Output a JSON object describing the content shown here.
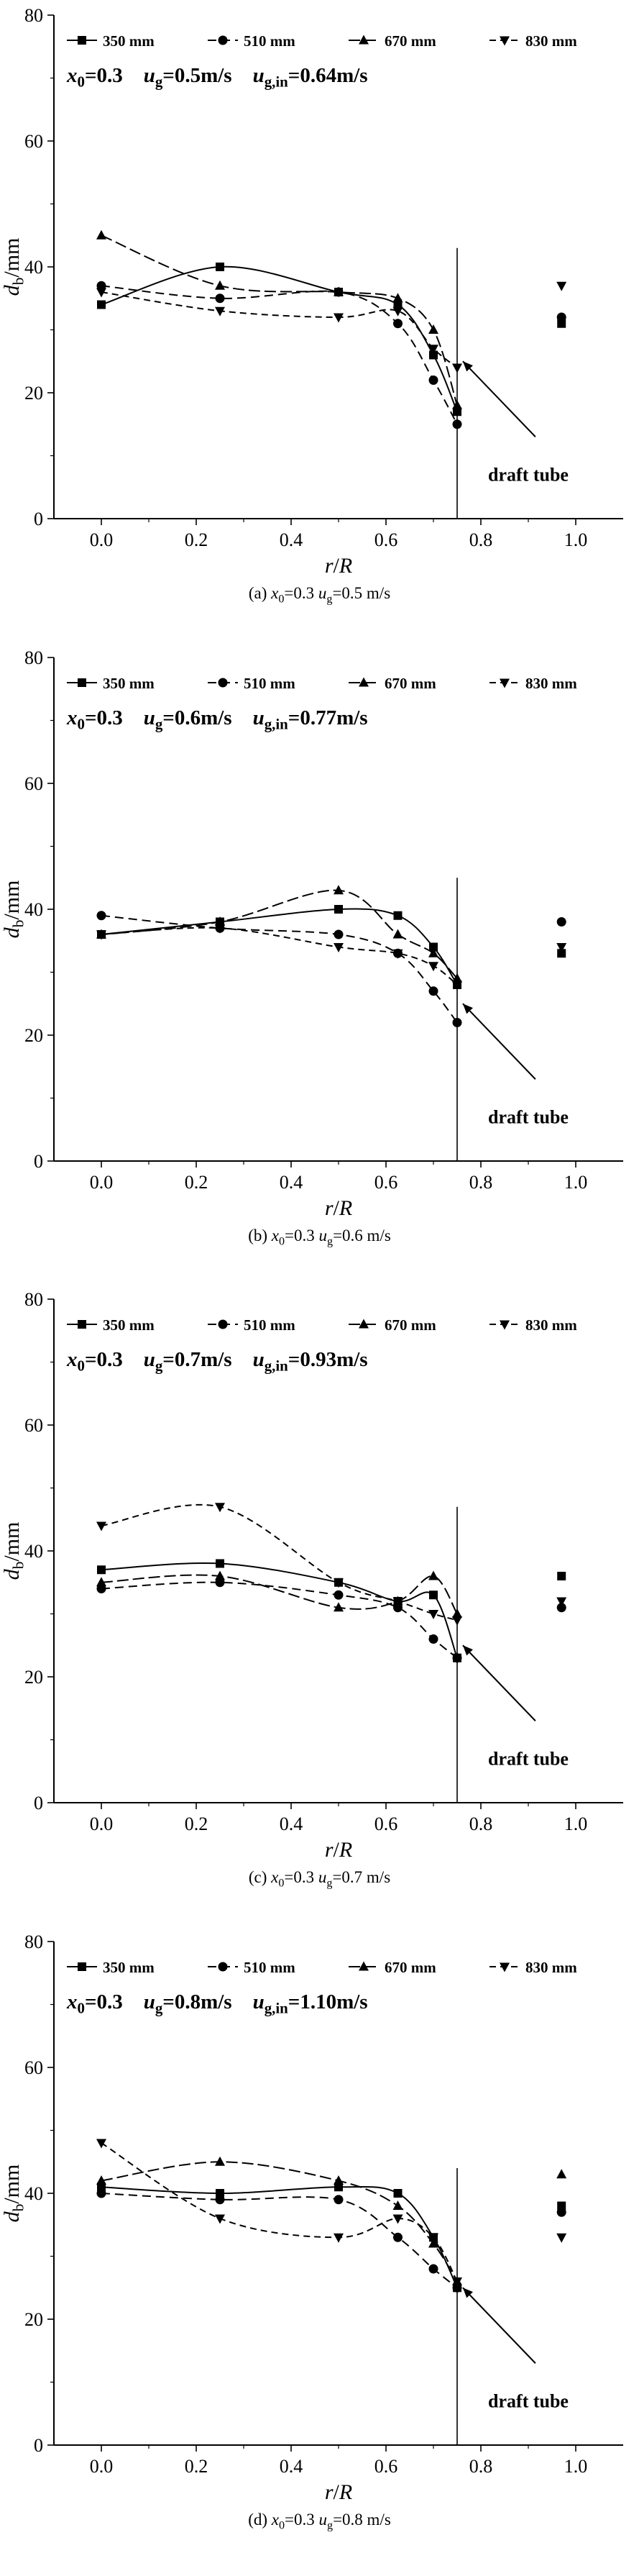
{
  "figure": {
    "background": "#ffffff",
    "foreground": "#000000",
    "draft_tube_label": "draft tube",
    "ylabel_segments": [
      {
        "t": "d",
        "i": 1
      },
      {
        "t": "b",
        "s": 1
      },
      {
        "t": "/mm"
      }
    ],
    "xlabel_segments": [
      {
        "t": "r",
        "i": 1
      },
      {
        "t": "/"
      },
      {
        "t": "R",
        "i": 1
      }
    ]
  },
  "chart_data": [
    {
      "type": "line-scatter",
      "panel": "a",
      "xlim": [
        -0.1,
        1.1
      ],
      "ylim": [
        0,
        80
      ],
      "x_tick_vals": [
        0,
        0.2,
        0.4,
        0.6,
        0.8,
        1.0
      ],
      "x_tick_labels": [
        "0.0",
        "0.2",
        "0.4",
        "0.6",
        "0.8",
        "1.0"
      ],
      "x_minor_ticks": [
        0.1,
        0.3,
        0.5,
        0.7,
        0.9
      ],
      "y_tick_vals": [
        0,
        20,
        40,
        60,
        80
      ],
      "y_tick_labels": [
        "0",
        "20",
        "40",
        "60",
        "80"
      ],
      "y_minor_ticks": [
        10,
        30,
        50,
        70
      ],
      "annotation_segments": [
        {
          "t": "x",
          "i": 1
        },
        {
          "t": "0",
          "s": 1
        },
        {
          "t": "=0.3    "
        },
        {
          "t": "u",
          "i": 1
        },
        {
          "t": "g",
          "s": 1
        },
        {
          "t": "=0.5m/s    "
        },
        {
          "t": "u",
          "i": 1
        },
        {
          "t": "g,in",
          "s": 1
        },
        {
          "t": "=0.64m/s"
        }
      ],
      "caption_segments": [
        {
          "t": "(a) "
        },
        {
          "t": "x",
          "i": 1
        },
        {
          "t": "0",
          "s": 1
        },
        {
          "t": "=0.3 "
        },
        {
          "t": "u",
          "i": 1
        },
        {
          "t": "g",
          "s": 1
        },
        {
          "t": "=0.5 m/s"
        }
      ],
      "draft_tube": {
        "x": 0.75,
        "top": 43
      },
      "x": [
        0,
        0.25,
        0.5,
        0.625,
        0.7,
        0.75
      ],
      "series": [
        {
          "name": "350 mm",
          "marker": "square",
          "dash": "",
          "y": [
            34,
            40,
            36,
            34,
            26,
            17
          ],
          "outlier": {
            "x": 0.97,
            "y": 31
          }
        },
        {
          "name": "510 mm",
          "marker": "circle",
          "dash": "12 7",
          "y": [
            37,
            35,
            36,
            31,
            22,
            15
          ],
          "outlier": {
            "x": 0.97,
            "y": 32
          }
        },
        {
          "name": "670 mm",
          "marker": "triangle-up",
          "dash": "16 6",
          "y": [
            45,
            37,
            36,
            35,
            30,
            18
          ]
        },
        {
          "name": "830 mm",
          "marker": "triangle-down",
          "dash": "9 6",
          "y": [
            36,
            33,
            32,
            33,
            27,
            24
          ],
          "outlier": {
            "x": 0.97,
            "y": 37
          }
        }
      ]
    },
    {
      "type": "line-scatter",
      "panel": "b",
      "xlim": [
        -0.1,
        1.1
      ],
      "ylim": [
        0,
        80
      ],
      "x_tick_vals": [
        0,
        0.2,
        0.4,
        0.6,
        0.8,
        1.0
      ],
      "x_tick_labels": [
        "0.0",
        "0.2",
        "0.4",
        "0.6",
        "0.8",
        "1.0"
      ],
      "x_minor_ticks": [
        0.1,
        0.3,
        0.5,
        0.7,
        0.9
      ],
      "y_tick_vals": [
        0,
        20,
        40,
        60,
        80
      ],
      "y_tick_labels": [
        "0",
        "20",
        "40",
        "60",
        "80"
      ],
      "y_minor_ticks": [
        10,
        30,
        50,
        70
      ],
      "annotation_segments": [
        {
          "t": "x",
          "i": 1
        },
        {
          "t": "0",
          "s": 1
        },
        {
          "t": "=0.3    "
        },
        {
          "t": "u",
          "i": 1
        },
        {
          "t": "g",
          "s": 1
        },
        {
          "t": "=0.6m/s    "
        },
        {
          "t": "u",
          "i": 1
        },
        {
          "t": "g,in",
          "s": 1
        },
        {
          "t": "=0.77m/s"
        }
      ],
      "caption_segments": [
        {
          "t": "(b) "
        },
        {
          "t": "x",
          "i": 1
        },
        {
          "t": "0",
          "s": 1
        },
        {
          "t": "=0.3 "
        },
        {
          "t": "u",
          "i": 1
        },
        {
          "t": "g",
          "s": 1
        },
        {
          "t": "=0.6 m/s"
        }
      ],
      "draft_tube": {
        "x": 0.75,
        "top": 45
      },
      "x": [
        0,
        0.25,
        0.5,
        0.625,
        0.7,
        0.75
      ],
      "series": [
        {
          "name": "350 mm",
          "marker": "square",
          "dash": "",
          "y": [
            36,
            38,
            40,
            39,
            34,
            28
          ],
          "outlier": {
            "x": 0.97,
            "y": 33
          }
        },
        {
          "name": "510 mm",
          "marker": "circle",
          "dash": "12 7",
          "y": [
            39,
            37,
            36,
            33,
            27,
            22
          ],
          "outlier": {
            "x": 0.97,
            "y": 38
          }
        },
        {
          "name": "670 mm",
          "marker": "triangle-up",
          "dash": "16 6",
          "y": [
            36,
            38,
            43,
            36,
            33,
            29
          ]
        },
        {
          "name": "830 mm",
          "marker": "triangle-down",
          "dash": "9 6",
          "y": [
            36,
            37,
            34,
            33,
            31,
            28
          ],
          "outlier": {
            "x": 0.97,
            "y": 34
          }
        }
      ]
    },
    {
      "type": "line-scatter",
      "panel": "c",
      "xlim": [
        -0.1,
        1.1
      ],
      "ylim": [
        0,
        80
      ],
      "x_tick_vals": [
        0,
        0.2,
        0.4,
        0.6,
        0.8,
        1.0
      ],
      "x_tick_labels": [
        "0.0",
        "0.2",
        "0.4",
        "0.6",
        "0.8",
        "1.0"
      ],
      "x_minor_ticks": [
        0.1,
        0.3,
        0.5,
        0.7,
        0.9
      ],
      "y_tick_vals": [
        0,
        20,
        40,
        60,
        80
      ],
      "y_tick_labels": [
        "0",
        "20",
        "40",
        "60",
        "80"
      ],
      "y_minor_ticks": [
        10,
        30,
        50,
        70
      ],
      "annotation_segments": [
        {
          "t": "x",
          "i": 1
        },
        {
          "t": "0",
          "s": 1
        },
        {
          "t": "=0.3    "
        },
        {
          "t": "u",
          "i": 1
        },
        {
          "t": "g",
          "s": 1
        },
        {
          "t": "=0.7m/s    "
        },
        {
          "t": "u",
          "i": 1
        },
        {
          "t": "g,in",
          "s": 1
        },
        {
          "t": "=0.93m/s"
        }
      ],
      "caption_segments": [
        {
          "t": "(c) "
        },
        {
          "t": "x",
          "i": 1
        },
        {
          "t": "0",
          "s": 1
        },
        {
          "t": "=0.3 "
        },
        {
          "t": "u",
          "i": 1
        },
        {
          "t": "g",
          "s": 1
        },
        {
          "t": "=0.7 m/s"
        }
      ],
      "draft_tube": {
        "x": 0.75,
        "top": 47
      },
      "x": [
        0,
        0.25,
        0.5,
        0.625,
        0.7,
        0.75
      ],
      "series": [
        {
          "name": "350 mm",
          "marker": "square",
          "dash": "",
          "y": [
            37,
            38,
            35,
            32,
            33,
            23
          ],
          "outlier": {
            "x": 0.97,
            "y": 36
          }
        },
        {
          "name": "510 mm",
          "marker": "circle",
          "dash": "12 7",
          "y": [
            34,
            35,
            33,
            31,
            26,
            23
          ],
          "outlier": {
            "x": 0.97,
            "y": 31
          }
        },
        {
          "name": "670 mm",
          "marker": "triangle-up",
          "dash": "16 6",
          "y": [
            35,
            36,
            31,
            32,
            36,
            30
          ]
        },
        {
          "name": "830 mm",
          "marker": "triangle-down",
          "dash": "9 6",
          "y": [
            44,
            47,
            35,
            32,
            30,
            29
          ],
          "outlier": {
            "x": 0.97,
            "y": 32
          }
        }
      ]
    },
    {
      "type": "line-scatter",
      "panel": "d",
      "xlim": [
        -0.1,
        1.1
      ],
      "ylim": [
        0,
        80
      ],
      "x_tick_vals": [
        0,
        0.2,
        0.4,
        0.6,
        0.8,
        1.0
      ],
      "x_tick_labels": [
        "0.0",
        "0.2",
        "0.4",
        "0.6",
        "0.8",
        "1.0"
      ],
      "x_minor_ticks": [
        0.1,
        0.3,
        0.5,
        0.7,
        0.9
      ],
      "y_tick_vals": [
        0,
        20,
        40,
        60,
        80
      ],
      "y_tick_labels": [
        "0",
        "20",
        "40",
        "60",
        "80"
      ],
      "y_minor_ticks": [
        10,
        30,
        50,
        70
      ],
      "annotation_segments": [
        {
          "t": "x",
          "i": 1
        },
        {
          "t": "0",
          "s": 1
        },
        {
          "t": "=0.3    "
        },
        {
          "t": "u",
          "i": 1
        },
        {
          "t": "g",
          "s": 1
        },
        {
          "t": "=0.8m/s    "
        },
        {
          "t": "u",
          "i": 1
        },
        {
          "t": "g,in",
          "s": 1
        },
        {
          "t": "=1.10m/s"
        }
      ],
      "caption_segments": [
        {
          "t": "(d) "
        },
        {
          "t": "x",
          "i": 1
        },
        {
          "t": "0",
          "s": 1
        },
        {
          "t": "=0.3 "
        },
        {
          "t": "u",
          "i": 1
        },
        {
          "t": "g",
          "s": 1
        },
        {
          "t": "=0.8 m/s"
        }
      ],
      "draft_tube": {
        "x": 0.75,
        "top": 44
      },
      "x": [
        0,
        0.25,
        0.5,
        0.625,
        0.7,
        0.75
      ],
      "series": [
        {
          "name": "350 mm",
          "marker": "square",
          "dash": "",
          "y": [
            41,
            40,
            41,
            40,
            33,
            25
          ],
          "outlier": {
            "x": 0.97,
            "y": 38
          }
        },
        {
          "name": "510 mm",
          "marker": "circle",
          "dash": "12 7",
          "y": [
            40,
            39,
            39,
            33,
            28,
            25
          ],
          "outlier": {
            "x": 0.97,
            "y": 37
          }
        },
        {
          "name": "670 mm",
          "marker": "triangle-up",
          "dash": "16 6",
          "y": [
            42,
            45,
            42,
            38,
            32,
            26
          ],
          "outlier": {
            "x": 0.97,
            "y": 43
          }
        },
        {
          "name": "830 mm",
          "marker": "triangle-down",
          "dash": "9 6",
          "y": [
            48,
            36,
            33,
            36,
            33,
            26
          ],
          "outlier": {
            "x": 0.97,
            "y": 33
          }
        }
      ]
    }
  ]
}
